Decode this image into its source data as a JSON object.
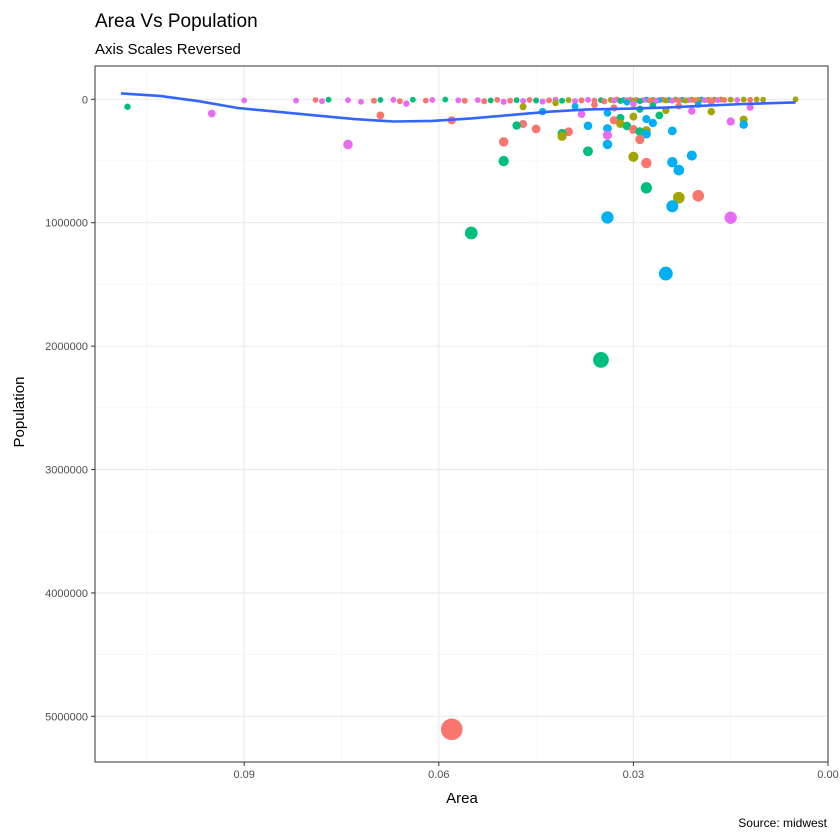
{
  "chart_data": {
    "type": "scatter",
    "title": "Area Vs Population",
    "subtitle": "Axis Scales Reversed",
    "xlabel": "Area",
    "ylabel": "Population",
    "caption": "Source: midwest",
    "x_reversed": true,
    "y_reversed": true,
    "xlim": [
      0.113,
      0.0
    ],
    "ylim": [
      -270000,
      5370000
    ],
    "x_ticks": [
      {
        "value": 0.09,
        "label": "0.09"
      },
      {
        "value": 0.06,
        "label": "0.06"
      },
      {
        "value": 0.03,
        "label": "0.03"
      },
      {
        "value": 0.0,
        "label": "0.00"
      }
    ],
    "y_ticks": [
      {
        "value": 0,
        "label": "0"
      },
      {
        "value": 1000000,
        "label": "1000000"
      },
      {
        "value": 2000000,
        "label": "2000000"
      },
      {
        "value": 3000000,
        "label": "3000000"
      },
      {
        "value": 4000000,
        "label": "4000000"
      },
      {
        "value": 5000000,
        "label": "5000000"
      }
    ],
    "grid": true,
    "legend": "none",
    "colors": {
      "IL": "#F8766D",
      "IN": "#A3A500",
      "MI": "#00BF7D",
      "OH": "#00B0F6",
      "WI": "#E76BF3",
      "smooth": "#3366FF"
    },
    "points": [
      {
        "x": 0.058,
        "y": 5105067,
        "group": "IL",
        "size": 5105067
      },
      {
        "x": 0.035,
        "y": 2111687,
        "group": "MI",
        "size": 2111687
      },
      {
        "x": 0.025,
        "y": 1412140,
        "group": "OH",
        "size": 1412140
      },
      {
        "x": 0.055,
        "y": 1083592,
        "group": "MI",
        "size": 1083592
      },
      {
        "x": 0.015,
        "y": 959275,
        "group": "WI",
        "size": 959275
      },
      {
        "x": 0.034,
        "y": 957000,
        "group": "OH",
        "size": 957000
      },
      {
        "x": 0.024,
        "y": 866228,
        "group": "OH",
        "size": 866228
      },
      {
        "x": 0.023,
        "y": 797159,
        "group": "IN",
        "size": 797159
      },
      {
        "x": 0.02,
        "y": 781666,
        "group": "IL",
        "size": 781666
      },
      {
        "x": 0.028,
        "y": 717400,
        "group": "MI",
        "size": 717400
      },
      {
        "x": 0.023,
        "y": 573809,
        "group": "OH",
        "size": 573809
      },
      {
        "x": 0.028,
        "y": 516418,
        "group": "IL",
        "size": 516418
      },
      {
        "x": 0.024,
        "y": 509507,
        "group": "OH",
        "size": 509507
      },
      {
        "x": 0.05,
        "y": 500631,
        "group": "MI",
        "size": 500631
      },
      {
        "x": 0.03,
        "y": 466000,
        "group": "IN",
        "size": 466000
      },
      {
        "x": 0.021,
        "y": 456000,
        "group": "OH",
        "size": 456000
      },
      {
        "x": 0.037,
        "y": 421000,
        "group": "MI",
        "size": 421000
      },
      {
        "x": 0.074,
        "y": 366000,
        "group": "WI",
        "size": 366000
      },
      {
        "x": 0.034,
        "y": 365000,
        "group": "OH",
        "size": 365000
      },
      {
        "x": 0.05,
        "y": 345000,
        "group": "IL",
        "size": 345000
      },
      {
        "x": 0.029,
        "y": 325000,
        "group": "IL",
        "size": 325000
      },
      {
        "x": 0.041,
        "y": 300000,
        "group": "IN",
        "size": 300000
      },
      {
        "x": 0.034,
        "y": 290000,
        "group": "WI",
        "size": 290000
      },
      {
        "x": 0.028,
        "y": 281000,
        "group": "OH",
        "size": 281000
      },
      {
        "x": 0.041,
        "y": 276000,
        "group": "MI",
        "size": 276000
      },
      {
        "x": 0.04,
        "y": 263000,
        "group": "IL",
        "size": 263000
      },
      {
        "x": 0.029,
        "y": 262000,
        "group": "MI",
        "size": 262000
      },
      {
        "x": 0.024,
        "y": 256000,
        "group": "OH",
        "size": 256000
      },
      {
        "x": 0.028,
        "y": 253000,
        "group": "IN",
        "size": 253000
      },
      {
        "x": 0.03,
        "y": 244000,
        "group": "IL",
        "size": 244000
      },
      {
        "x": 0.045,
        "y": 240000,
        "group": "IL",
        "size": 240000
      },
      {
        "x": 0.034,
        "y": 236000,
        "group": "OH",
        "size": 236000
      },
      {
        "x": 0.048,
        "y": 212000,
        "group": "MI",
        "size": 212000
      },
      {
        "x": 0.037,
        "y": 214000,
        "group": "OH",
        "size": 214000
      },
      {
        "x": 0.013,
        "y": 205000,
        "group": "OH",
        "size": 205000
      },
      {
        "x": 0.032,
        "y": 198000,
        "group": "IN",
        "size": 198000
      },
      {
        "x": 0.031,
        "y": 216000,
        "group": "MI",
        "size": 216000
      },
      {
        "x": 0.015,
        "y": 180000,
        "group": "WI",
        "size": 180000
      },
      {
        "x": 0.027,
        "y": 192000,
        "group": "OH",
        "size": 192000
      },
      {
        "x": 0.013,
        "y": 165000,
        "group": "IN",
        "size": 165000
      },
      {
        "x": 0.058,
        "y": 170000,
        "group": "IL",
        "size": 170000
      },
      {
        "x": 0.033,
        "y": 170000,
        "group": "IL",
        "size": 170000
      },
      {
        "x": 0.028,
        "y": 160000,
        "group": "OH",
        "size": 160000
      },
      {
        "x": 0.032,
        "y": 150000,
        "group": "MI",
        "size": 150000
      },
      {
        "x": 0.047,
        "y": 200000,
        "group": "IL",
        "size": 160000
      },
      {
        "x": 0.03,
        "y": 140000,
        "group": "IN",
        "size": 140000
      },
      {
        "x": 0.026,
        "y": 130000,
        "group": "MI",
        "size": 130000
      },
      {
        "x": 0.069,
        "y": 130000,
        "group": "IL",
        "size": 130000
      },
      {
        "x": 0.095,
        "y": 115000,
        "group": "WI",
        "size": 115000
      },
      {
        "x": 0.038,
        "y": 120000,
        "group": "WI",
        "size": 120000
      },
      {
        "x": 0.034,
        "y": 110000,
        "group": "OH",
        "size": 110000
      },
      {
        "x": 0.044,
        "y": 100000,
        "group": "OH",
        "size": 100000
      },
      {
        "x": 0.018,
        "y": 100000,
        "group": "IN",
        "size": 100000
      },
      {
        "x": 0.021,
        "y": 95000,
        "group": "WI",
        "size": 95000
      },
      {
        "x": 0.025,
        "y": 90000,
        "group": "IN",
        "size": 90000
      },
      {
        "x": 0.029,
        "y": 80000,
        "group": "MI",
        "size": 80000
      },
      {
        "x": 0.033,
        "y": 70000,
        "group": "IL",
        "size": 70000
      },
      {
        "x": 0.012,
        "y": 65000,
        "group": "WI",
        "size": 65000
      },
      {
        "x": 0.047,
        "y": 60000,
        "group": "IN",
        "size": 60000
      },
      {
        "x": 0.039,
        "y": 58000,
        "group": "OH",
        "size": 58000
      },
      {
        "x": 0.023,
        "y": 55000,
        "group": "IL",
        "size": 55000
      },
      {
        "x": 0.027,
        "y": 50000,
        "group": "MI",
        "size": 50000
      },
      {
        "x": 0.036,
        "y": 45000,
        "group": "IL",
        "size": 45000
      },
      {
        "x": 0.02,
        "y": 42000,
        "group": "OH",
        "size": 42000
      },
      {
        "x": 0.03,
        "y": 38000,
        "group": "WI",
        "size": 38000
      },
      {
        "x": 0.108,
        "y": 60000,
        "group": "MI",
        "size": 30000
      },
      {
        "x": 0.065,
        "y": 35000,
        "group": "WI",
        "size": 30000
      },
      {
        "x": 0.042,
        "y": 30000,
        "group": "IN",
        "size": 30000
      },
      {
        "x": 0.018,
        "y": 28000,
        "group": "IL",
        "size": 28000
      },
      {
        "x": 0.031,
        "y": 25000,
        "group": "OH",
        "size": 25000
      },
      {
        "x": 0.09,
        "y": 8000,
        "group": "WI",
        "size": 8000
      },
      {
        "x": 0.082,
        "y": 10000,
        "group": "WI",
        "size": 10000
      },
      {
        "x": 0.079,
        "y": 5000,
        "group": "IL",
        "size": 5000
      },
      {
        "x": 0.078,
        "y": 15000,
        "group": "WI",
        "size": 12000
      },
      {
        "x": 0.077,
        "y": 3000,
        "group": "MI",
        "size": 8000
      },
      {
        "x": 0.074,
        "y": 7000,
        "group": "WI",
        "size": 9000
      },
      {
        "x": 0.072,
        "y": 20000,
        "group": "WI",
        "size": 10000
      },
      {
        "x": 0.07,
        "y": 12000,
        "group": "IL",
        "size": 12000
      },
      {
        "x": 0.069,
        "y": 5000,
        "group": "MI",
        "size": 7000
      },
      {
        "x": 0.067,
        "y": 4000,
        "group": "WI",
        "size": 6000
      },
      {
        "x": 0.066,
        "y": 15000,
        "group": "IL",
        "size": 11000
      },
      {
        "x": 0.064,
        "y": 3000,
        "group": "MI",
        "size": 6000
      },
      {
        "x": 0.062,
        "y": 10000,
        "group": "IL",
        "size": 9000
      },
      {
        "x": 0.061,
        "y": 5000,
        "group": "WI",
        "size": 8000
      },
      {
        "x": 0.059,
        "y": 2000,
        "group": "MI",
        "size": 7000
      },
      {
        "x": 0.057,
        "y": 8000,
        "group": "WI",
        "size": 9000
      },
      {
        "x": 0.056,
        "y": 12000,
        "group": "IL",
        "size": 12000
      },
      {
        "x": 0.054,
        "y": 6000,
        "group": "WI",
        "size": 10000
      },
      {
        "x": 0.053,
        "y": 15000,
        "group": "IL",
        "size": 15000
      },
      {
        "x": 0.052,
        "y": 9000,
        "group": "MI",
        "size": 9000
      },
      {
        "x": 0.051,
        "y": 4000,
        "group": "IL",
        "size": 8000
      },
      {
        "x": 0.05,
        "y": 20000,
        "group": "WI",
        "size": 16000
      },
      {
        "x": 0.049,
        "y": 11000,
        "group": "IL",
        "size": 11000
      },
      {
        "x": 0.048,
        "y": 7000,
        "group": "MI",
        "size": 10000
      },
      {
        "x": 0.047,
        "y": 14000,
        "group": "WI",
        "size": 14000
      },
      {
        "x": 0.046,
        "y": 5000,
        "group": "IL",
        "size": 9000
      },
      {
        "x": 0.045,
        "y": 10000,
        "group": "MI",
        "size": 12000
      },
      {
        "x": 0.044,
        "y": 18000,
        "group": "WI",
        "size": 15000
      },
      {
        "x": 0.043,
        "y": 8000,
        "group": "IL",
        "size": 11000
      },
      {
        "x": 0.042,
        "y": 3000,
        "group": "WI",
        "size": 9000
      },
      {
        "x": 0.041,
        "y": 12000,
        "group": "MI",
        "size": 13000
      },
      {
        "x": 0.04,
        "y": 6000,
        "group": "IN",
        "size": 10000
      },
      {
        "x": 0.039,
        "y": 15000,
        "group": "WI",
        "size": 14000
      },
      {
        "x": 0.038,
        "y": 9000,
        "group": "IL",
        "size": 12000
      },
      {
        "x": 0.037,
        "y": 4000,
        "group": "WI",
        "size": 9000
      },
      {
        "x": 0.036,
        "y": 11000,
        "group": "IL",
        "size": 13000
      },
      {
        "x": 0.035,
        "y": 7000,
        "group": "MI",
        "size": 10000
      },
      {
        "x": 0.0345,
        "y": 16000,
        "group": "IL",
        "size": 15000
      },
      {
        "x": 0.0335,
        "y": 5000,
        "group": "IN",
        "size": 11000
      },
      {
        "x": 0.033,
        "y": 10000,
        "group": "WI",
        "size": 12000
      },
      {
        "x": 0.0325,
        "y": 2000,
        "group": "IL",
        "size": 9000
      },
      {
        "x": 0.032,
        "y": 13000,
        "group": "MI",
        "size": 14000
      },
      {
        "x": 0.0315,
        "y": 6000,
        "group": "OH",
        "size": 10000
      },
      {
        "x": 0.031,
        "y": 9000,
        "group": "IL",
        "size": 12000
      },
      {
        "x": 0.0305,
        "y": 3000,
        "group": "WI",
        "size": 9000
      },
      {
        "x": 0.03,
        "y": 11000,
        "group": "IN",
        "size": 13000
      },
      {
        "x": 0.0295,
        "y": 5000,
        "group": "IL",
        "size": 10000
      },
      {
        "x": 0.029,
        "y": 14000,
        "group": "MI",
        "size": 15000
      },
      {
        "x": 0.0285,
        "y": 7000,
        "group": "WI",
        "size": 11000
      },
      {
        "x": 0.028,
        "y": 2000,
        "group": "OH",
        "size": 9000
      },
      {
        "x": 0.0275,
        "y": 10000,
        "group": "IL",
        "size": 12000
      },
      {
        "x": 0.027,
        "y": 4000,
        "group": "IN",
        "size": 10000
      },
      {
        "x": 0.0265,
        "y": 12000,
        "group": "WI",
        "size": 14000
      },
      {
        "x": 0.026,
        "y": 6000,
        "group": "OH",
        "size": 11000
      },
      {
        "x": 0.0255,
        "y": 3000,
        "group": "IL",
        "size": 9000
      },
      {
        "x": 0.025,
        "y": 9000,
        "group": "IN",
        "size": 12000
      },
      {
        "x": 0.0245,
        "y": 5000,
        "group": "OH",
        "size": 10000
      },
      {
        "x": 0.024,
        "y": 11000,
        "group": "WI",
        "size": 13000
      },
      {
        "x": 0.0235,
        "y": 2000,
        "group": "IN",
        "size": 9000
      },
      {
        "x": 0.023,
        "y": 8000,
        "group": "IL",
        "size": 11000
      },
      {
        "x": 0.0225,
        "y": 4000,
        "group": "OH",
        "size": 10000
      },
      {
        "x": 0.022,
        "y": 10000,
        "group": "IN",
        "size": 12000
      },
      {
        "x": 0.0215,
        "y": 6000,
        "group": "WI",
        "size": 11000
      },
      {
        "x": 0.021,
        "y": 3000,
        "group": "IN",
        "size": 9000
      },
      {
        "x": 0.0205,
        "y": 9000,
        "group": "IL",
        "size": 12000
      },
      {
        "x": 0.02,
        "y": 5000,
        "group": "IN",
        "size": 10000
      },
      {
        "x": 0.0195,
        "y": 2000,
        "group": "OH",
        "size": 8000
      },
      {
        "x": 0.019,
        "y": 7000,
        "group": "WI",
        "size": 11000
      },
      {
        "x": 0.0185,
        "y": 4000,
        "group": "IN",
        "size": 9000
      },
      {
        "x": 0.018,
        "y": 8000,
        "group": "IL",
        "size": 11000
      },
      {
        "x": 0.0175,
        "y": 3000,
        "group": "IN",
        "size": 9000
      },
      {
        "x": 0.017,
        "y": 6000,
        "group": "WI",
        "size": 10000
      },
      {
        "x": 0.0165,
        "y": 2000,
        "group": "IN",
        "size": 8000
      },
      {
        "x": 0.016,
        "y": 5000,
        "group": "IL",
        "size": 9000
      },
      {
        "x": 0.015,
        "y": 3000,
        "group": "IN",
        "size": 9000
      },
      {
        "x": 0.014,
        "y": 6000,
        "group": "WI",
        "size": 10000
      },
      {
        "x": 0.013,
        "y": 2000,
        "group": "IN",
        "size": 8000
      },
      {
        "x": 0.012,
        "y": 4000,
        "group": "IL",
        "size": 9000
      },
      {
        "x": 0.011,
        "y": 1000,
        "group": "IN",
        "size": 8000
      },
      {
        "x": 0.01,
        "y": 3000,
        "group": "IN",
        "size": 7000
      },
      {
        "x": 0.005,
        "y": 0,
        "group": "IN",
        "size": 8000
      }
    ],
    "smooth_line": {
      "color": "#3366FF",
      "x": [
        0.109,
        0.103,
        0.097,
        0.091,
        0.085,
        0.079,
        0.073,
        0.067,
        0.061,
        0.055,
        0.049,
        0.043,
        0.037,
        0.031,
        0.025,
        0.019,
        0.013,
        0.007,
        0.005
      ],
      "y": [
        -48000,
        -28000,
        15000,
        70000,
        100000,
        130000,
        160000,
        180000,
        175000,
        155000,
        128000,
        100000,
        82000,
        76000,
        67000,
        52000,
        38000,
        28000,
        25000
      ]
    }
  }
}
